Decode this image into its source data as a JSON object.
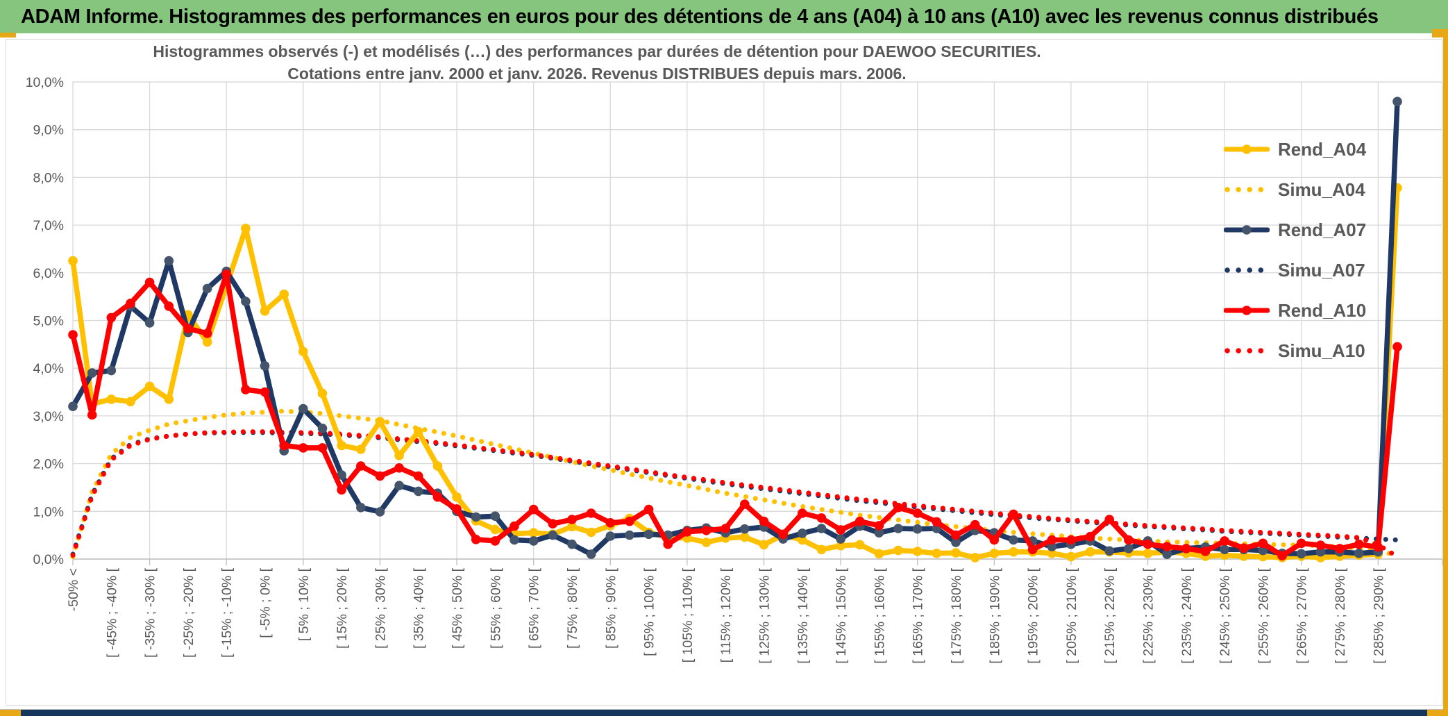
{
  "header": {
    "title": "ADAM Informe. Histogrammes des performances en euros pour des détentions de 4 ans (A04) à 10 ans (A10) avec les revenus connus distribués"
  },
  "colors": {
    "header_green": "#85C57D",
    "accent_gold": "#E8A714",
    "footer_navy": "#17365D",
    "grid_gray": "#D9D9D9",
    "axis_gray": "#BFBFBF",
    "text_gray": "#595959",
    "series_gold": "#FFC000",
    "series_navy": "#1F3864",
    "series_navy_marker": "#44546A",
    "series_red": "#FF0000"
  },
  "chart_data": {
    "type": "line",
    "title": "Histogrammes observés (-) et modélisés (…) des performances par durées de détention pour DAEWOO SECURITIES.",
    "subtitle": "Cotations entre janv. 2000 et janv. 2026. Revenus DISTRIBUES depuis mars. 2006.",
    "grid": true,
    "legend_position": "upper-right",
    "ylim": [
      0,
      10
    ],
    "y_unit": "percent",
    "y_tick_labels": [
      "0,0%",
      "1,0%",
      "2,0%",
      "3,0%",
      "4,0%",
      "5,0%",
      "6,0%",
      "7,0%",
      "8,0%",
      "9,0%",
      "10,0%"
    ],
    "bin_count": 70,
    "x_axis_note": "70 histogram bins of 5% width from <-50% to >290%; only every second bin carries an axis label; last bin holds the cumulative spike",
    "labels": [
      "-50% <",
      "[ -45% ; -40% [",
      "[ -35% ; -30% [",
      "[ -25% ; -20% [",
      "[ -15% ; -10% [",
      "[ -5% ; 0% [",
      "[ 5% ; 10% [",
      "[ 15% ; 20% [",
      "[ 25% ; 30% [",
      "[ 35% ; 40% [",
      "[ 45% ; 50% [",
      "[ 55% ; 60% [",
      "[ 65% ; 70% [",
      "[ 75% ; 80% [",
      "[ 85% ; 90% [",
      "[ 95% ; 100% [",
      "[ 105% ; 110% [",
      "[ 115% ; 120% [",
      "[ 125% ; 130% [",
      "[ 135% ; 140% [",
      "[ 145% ; 150% [",
      "[ 155% ; 160% [",
      "[ 165% ; 170% [",
      "[ 175% ; 180% [",
      "[ 185% ; 190% [",
      "[ 195% ; 200% [",
      "[ 205% ; 210% [",
      "[ 215% ; 220% [",
      "[ 225% ; 230% [",
      "[ 235% ; 240% [",
      "[ 245% ; 250% [",
      "[ 255% ; 260% [",
      "[ 265% ; 270% [",
      "[ 275% ; 280% [",
      "[ 285% ; 290% ["
    ],
    "series": [
      {
        "name": "Rend_A04",
        "style": "solid",
        "color": "#FFC000",
        "marker_color": "#FFC000",
        "values": [
          6.25,
          3.25,
          3.35,
          3.3,
          3.62,
          3.35,
          5.12,
          4.55,
          5.72,
          6.93,
          5.2,
          5.55,
          4.35,
          3.47,
          2.38,
          2.3,
          2.88,
          2.17,
          2.67,
          1.95,
          1.3,
          0.8,
          0.62,
          0.53,
          0.55,
          0.52,
          0.68,
          0.56,
          0.7,
          0.85,
          0.56,
          0.45,
          0.44,
          0.35,
          0.44,
          0.46,
          0.3,
          0.51,
          0.4,
          0.2,
          0.28,
          0.3,
          0.11,
          0.18,
          0.16,
          0.12,
          0.13,
          0.03,
          0.12,
          0.15,
          0.15,
          0.12,
          0.05,
          0.15,
          0.15,
          0.13,
          0.12,
          0.15,
          0.12,
          0.06,
          0.08,
          0.06,
          0.05,
          0.03,
          0.06,
          0.03,
          0.06,
          0.08,
          0.1,
          7.78
        ]
      },
      {
        "name": "Simu_A04",
        "style": "dotted",
        "color": "#FFC000",
        "values": [
          0.05,
          1.4,
          2.2,
          2.55,
          2.7,
          2.83,
          2.9,
          2.97,
          3.02,
          3.06,
          3.08,
          3.1,
          3.08,
          3.05,
          3.0,
          2.95,
          2.9,
          2.82,
          2.74,
          2.66,
          2.58,
          2.49,
          2.4,
          2.31,
          2.22,
          2.13,
          2.04,
          1.95,
          1.87,
          1.78,
          1.7,
          1.62,
          1.54,
          1.46,
          1.38,
          1.31,
          1.24,
          1.17,
          1.1,
          1.04,
          0.98,
          0.92,
          0.87,
          0.82,
          0.77,
          0.72,
          0.68,
          0.64,
          0.6,
          0.56,
          0.53,
          0.5,
          0.47,
          0.44,
          0.42,
          0.4,
          0.38,
          0.36,
          0.35,
          0.34,
          0.33,
          0.32,
          0.31,
          0.3,
          0.29,
          0.28,
          0.26,
          0.22,
          0.17,
          0.08
        ]
      },
      {
        "name": "Rend_A07",
        "style": "solid",
        "color": "#1F3864",
        "marker_color": "#44546A",
        "values": [
          3.2,
          3.9,
          3.95,
          5.3,
          4.95,
          6.25,
          4.75,
          5.67,
          6.03,
          5.4,
          4.05,
          2.27,
          3.15,
          2.74,
          1.76,
          1.08,
          0.99,
          1.54,
          1.42,
          1.38,
          1.0,
          0.88,
          0.9,
          0.4,
          0.38,
          0.5,
          0.31,
          0.1,
          0.48,
          0.5,
          0.52,
          0.5,
          0.6,
          0.65,
          0.55,
          0.63,
          0.67,
          0.42,
          0.54,
          0.64,
          0.42,
          0.69,
          0.55,
          0.64,
          0.63,
          0.64,
          0.35,
          0.6,
          0.55,
          0.4,
          0.38,
          0.26,
          0.31,
          0.38,
          0.17,
          0.22,
          0.38,
          0.1,
          0.22,
          0.25,
          0.2,
          0.2,
          0.18,
          0.12,
          0.11,
          0.15,
          0.15,
          0.12,
          0.15,
          9.59
        ]
      },
      {
        "name": "Simu_A07",
        "style": "dotted",
        "color": "#1F3864",
        "values": [
          0.1,
          1.35,
          2.1,
          2.4,
          2.52,
          2.58,
          2.62,
          2.64,
          2.65,
          2.65,
          2.65,
          2.64,
          2.63,
          2.62,
          2.6,
          2.57,
          2.54,
          2.5,
          2.46,
          2.42,
          2.37,
          2.32,
          2.27,
          2.22,
          2.17,
          2.11,
          2.05,
          1.99,
          1.93,
          1.87,
          1.81,
          1.75,
          1.69,
          1.63,
          1.58,
          1.52,
          1.47,
          1.42,
          1.37,
          1.32,
          1.27,
          1.22,
          1.18,
          1.13,
          1.09,
          1.05,
          1.01,
          0.97,
          0.93,
          0.9,
          0.86,
          0.83,
          0.8,
          0.77,
          0.74,
          0.71,
          0.68,
          0.66,
          0.63,
          0.61,
          0.58,
          0.56,
          0.54,
          0.52,
          0.5,
          0.48,
          0.46,
          0.44,
          0.42,
          0.4
        ]
      },
      {
        "name": "Rend_A10",
        "style": "solid",
        "color": "#FF0000",
        "marker_color": "#FF0000",
        "values": [
          4.7,
          3.02,
          5.06,
          5.36,
          5.8,
          5.3,
          4.83,
          4.73,
          5.97,
          3.55,
          3.5,
          2.38,
          2.33,
          2.33,
          1.45,
          1.95,
          1.74,
          1.91,
          1.74,
          1.3,
          1.05,
          0.41,
          0.38,
          0.69,
          1.04,
          0.74,
          0.83,
          0.96,
          0.76,
          0.79,
          1.04,
          0.31,
          0.57,
          0.6,
          0.64,
          1.15,
          0.79,
          0.52,
          0.96,
          0.86,
          0.61,
          0.79,
          0.7,
          1.08,
          0.96,
          0.78,
          0.5,
          0.72,
          0.4,
          0.94,
          0.2,
          0.4,
          0.4,
          0.47,
          0.83,
          0.4,
          0.31,
          0.26,
          0.22,
          0.16,
          0.38,
          0.23,
          0.33,
          0.07,
          0.33,
          0.29,
          0.22,
          0.31,
          0.25,
          4.45
        ]
      },
      {
        "name": "Simu_A10",
        "style": "dotted",
        "color": "#FF0000",
        "values": [
          0.08,
          1.32,
          2.08,
          2.38,
          2.51,
          2.58,
          2.62,
          2.65,
          2.66,
          2.67,
          2.67,
          2.66,
          2.65,
          2.64,
          2.62,
          2.59,
          2.56,
          2.52,
          2.48,
          2.44,
          2.39,
          2.34,
          2.29,
          2.24,
          2.19,
          2.13,
          2.07,
          2.01,
          1.95,
          1.89,
          1.83,
          1.77,
          1.71,
          1.66,
          1.6,
          1.55,
          1.5,
          1.45,
          1.4,
          1.35,
          1.3,
          1.25,
          1.21,
          1.16,
          1.12,
          1.08,
          1.04,
          1.0,
          0.96,
          0.92,
          0.89,
          0.85,
          0.82,
          0.79,
          0.76,
          0.73,
          0.7,
          0.68,
          0.65,
          0.63,
          0.6,
          0.58,
          0.56,
          0.54,
          0.52,
          0.5,
          0.48,
          0.45,
          0.3,
          0.05
        ]
      }
    ]
  }
}
